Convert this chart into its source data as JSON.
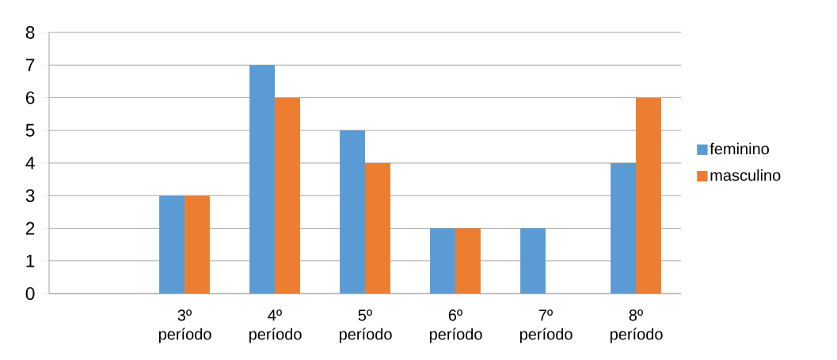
{
  "chart_data": {
    "type": "bar",
    "categories": [
      null,
      "3º período",
      "4º período",
      "5º período",
      "6º período",
      "7º período",
      "8º período"
    ],
    "series": [
      {
        "name": "feminino",
        "color": "#5b9bd5",
        "values": [
          null,
          3,
          7,
          5,
          2,
          2,
          4
        ]
      },
      {
        "name": "masculino",
        "color": "#ed7d31",
        "values": [
          null,
          3,
          6,
          4,
          2,
          null,
          6
        ]
      }
    ],
    "ylim": [
      0,
      8
    ],
    "yticks": [
      0,
      1,
      2,
      3,
      4,
      5,
      6,
      7,
      8
    ],
    "grid": "y",
    "legend": "right"
  }
}
